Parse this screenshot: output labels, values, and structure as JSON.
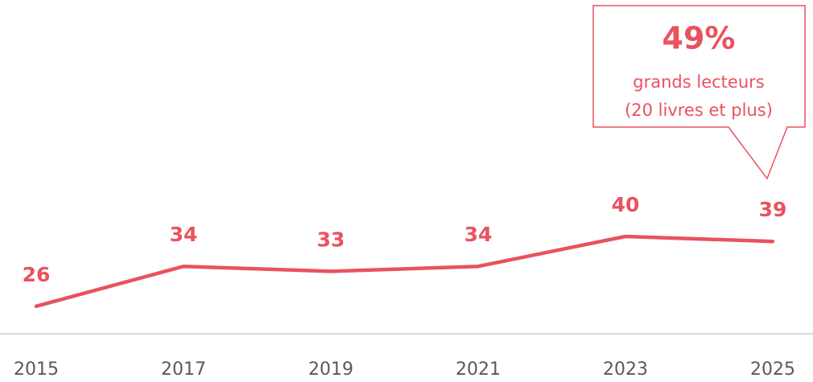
{
  "chart_data": {
    "type": "line",
    "categories": [
      "2015",
      "2017",
      "2019",
      "2021",
      "2023",
      "2025"
    ],
    "series": [
      {
        "name": "lecteurs",
        "color": "#e9525e",
        "values": [
          26,
          34,
          33,
          34,
          40,
          39
        ]
      }
    ],
    "ylim": [
      20,
      85
    ],
    "annotation": {
      "value": "49%",
      "lines": [
        "grands lecteurs",
        "(20 livres et plus)"
      ]
    }
  }
}
